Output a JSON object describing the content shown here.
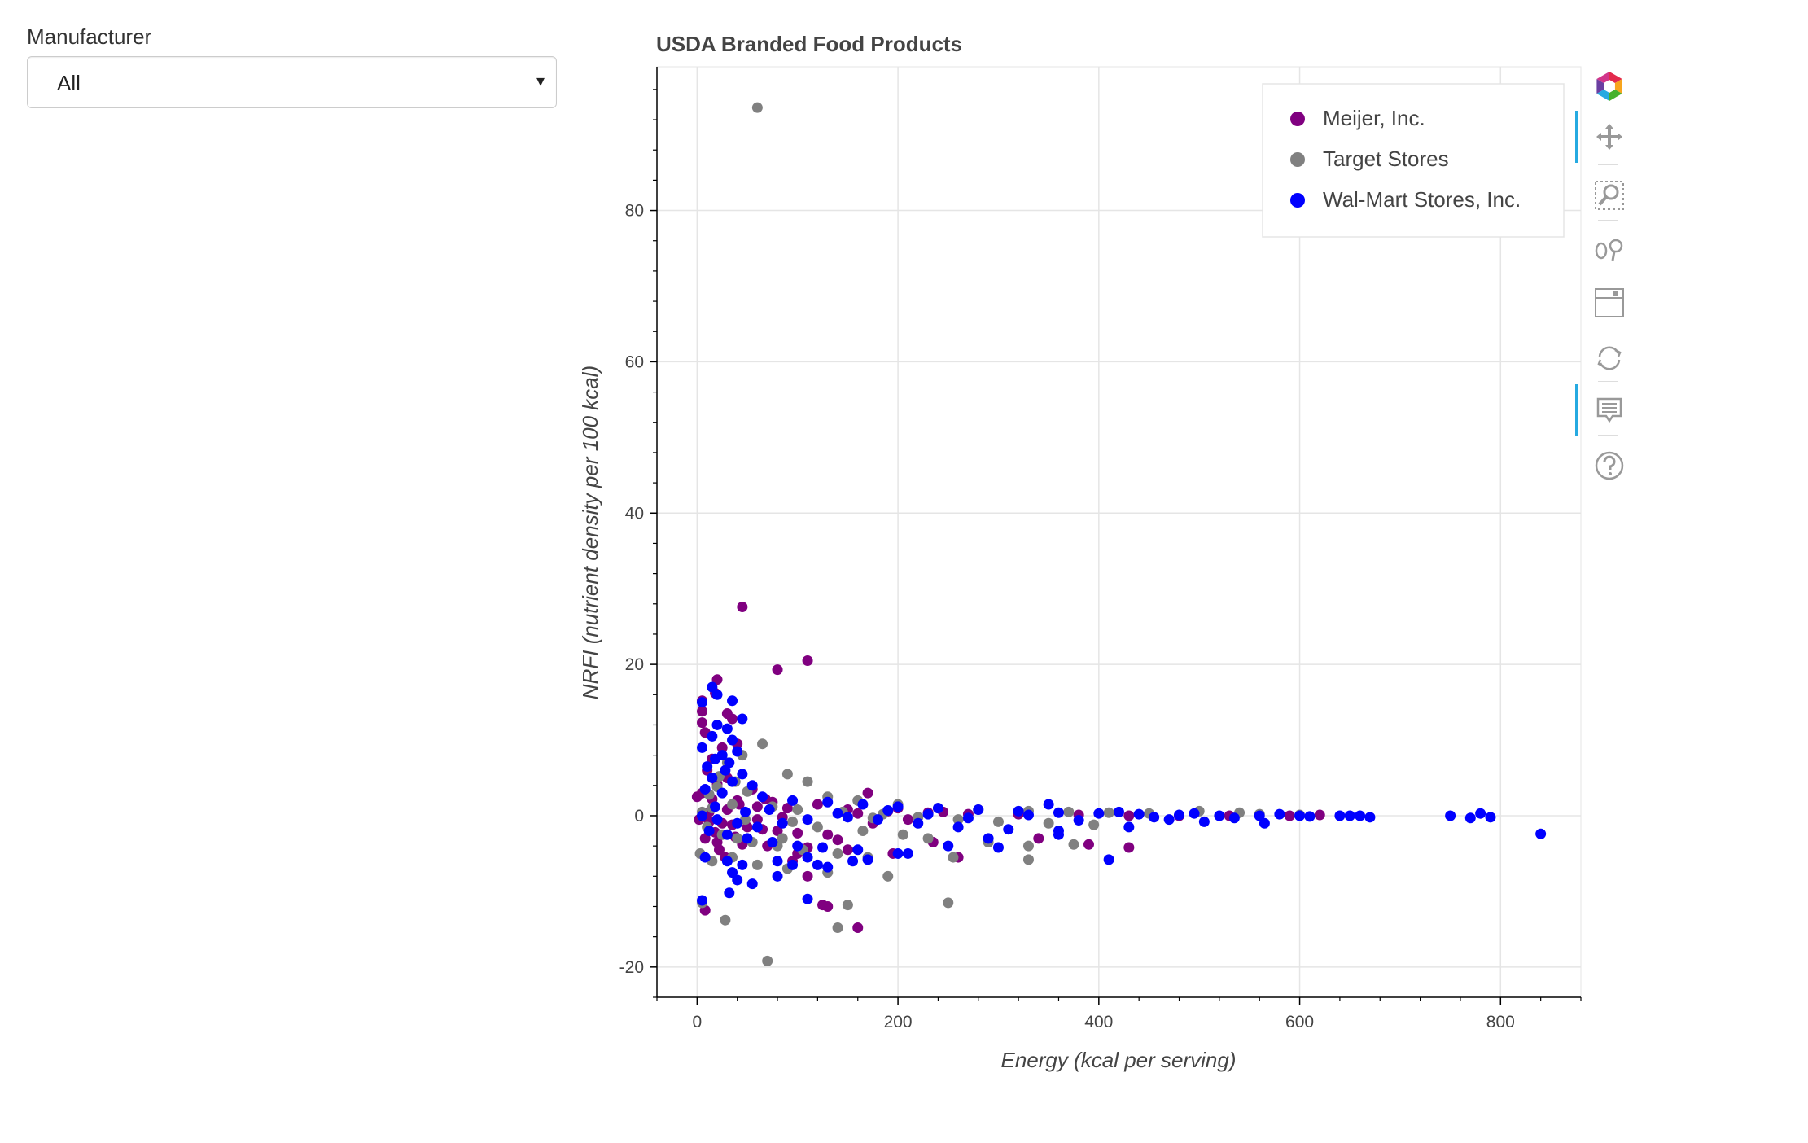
{
  "widget": {
    "label": "Manufacturer",
    "selected": "All",
    "caret": "▾"
  },
  "toolbar": {
    "tools": [
      "bokeh-logo-icon",
      "pan-icon",
      "box-zoom-icon",
      "wheel-zoom-icon",
      "save-icon",
      "reset-icon",
      "hover-icon",
      "help-icon"
    ],
    "active": [
      "pan-icon",
      "hover-icon"
    ],
    "logo_colors": [
      "#e32a4d",
      "#f8a51d",
      "#46b12d",
      "#26aae1",
      "#6a3ea1",
      "#d1358a"
    ],
    "accent": "#26aae1"
  },
  "chart_data": {
    "type": "scatter",
    "title": "USDA Branded Food Products",
    "xlabel": "Energy (kcal per serving)",
    "ylabel": "NRFI (nutrient density per 100 kcal)",
    "xlim": [
      -40,
      880
    ],
    "ylim": [
      -24,
      99
    ],
    "xticks": [
      0,
      200,
      400,
      600,
      800
    ],
    "yticks": [
      -20,
      0,
      20,
      40,
      60,
      80
    ],
    "grid": true,
    "legend_position": "top-right",
    "series": [
      {
        "name": "Meijer, Inc.",
        "color": "#800080",
        "points": [
          [
            45,
            27.6
          ],
          [
            110,
            20.5
          ],
          [
            80,
            19.3
          ],
          [
            20,
            18.0
          ],
          [
            18,
            16.2
          ],
          [
            5,
            15.2
          ],
          [
            5,
            13.8
          ],
          [
            30,
            13.5
          ],
          [
            35,
            12.8
          ],
          [
            5,
            12.3
          ],
          [
            8,
            11.0
          ],
          [
            40,
            9.5
          ],
          [
            25,
            9.0
          ],
          [
            15,
            7.5
          ],
          [
            10,
            6.0
          ],
          [
            30,
            5.0
          ],
          [
            20,
            4.2
          ],
          [
            55,
            3.5
          ],
          [
            5,
            3.0
          ],
          [
            170,
            3.0
          ],
          [
            0,
            2.5
          ],
          [
            15,
            2.2
          ],
          [
            40,
            2.0
          ],
          [
            75,
            1.8
          ],
          [
            120,
            1.5
          ],
          [
            60,
            1.2
          ],
          [
            90,
            1.0
          ],
          [
            150,
            0.8
          ],
          [
            190,
            0.6
          ],
          [
            230,
            0.4
          ],
          [
            270,
            0.2
          ],
          [
            320,
            0.2
          ],
          [
            380,
            0.1
          ],
          [
            430,
            0.0
          ],
          [
            480,
            0.0
          ],
          [
            530,
            0.0
          ],
          [
            590,
            0.0
          ],
          [
            620,
            0.1
          ],
          [
            2,
            -0.5
          ],
          [
            12,
            -0.8
          ],
          [
            25,
            -1.0
          ],
          [
            35,
            -1.2
          ],
          [
            50,
            -1.5
          ],
          [
            65,
            -1.8
          ],
          [
            80,
            -2.0
          ],
          [
            100,
            -2.3
          ],
          [
            130,
            -2.5
          ],
          [
            8,
            -3.0
          ],
          [
            20,
            -3.5
          ],
          [
            45,
            -3.8
          ],
          [
            70,
            -4.0
          ],
          [
            110,
            -4.2
          ],
          [
            150,
            -4.5
          ],
          [
            195,
            -5.0
          ],
          [
            235,
            -3.5
          ],
          [
            340,
            -3.0
          ],
          [
            390,
            -3.8
          ],
          [
            430,
            -4.2
          ],
          [
            260,
            -5.5
          ],
          [
            22,
            -4.5
          ],
          [
            28,
            -5.5
          ],
          [
            95,
            -6.0
          ],
          [
            110,
            -8.0
          ],
          [
            125,
            -11.8
          ],
          [
            130,
            -12.0
          ],
          [
            160,
            -14.8
          ],
          [
            8,
            -12.5
          ],
          [
            100,
            -5.0
          ],
          [
            140,
            -3.2
          ],
          [
            175,
            -1.0
          ],
          [
            210,
            -0.5
          ],
          [
            60,
            -0.5
          ],
          [
            85,
            -0.2
          ],
          [
            160,
            0.3
          ],
          [
            200,
            1.0
          ],
          [
            245,
            0.5
          ],
          [
            12,
            0.5
          ],
          [
            30,
            0.8
          ],
          [
            42,
            1.5
          ],
          [
            68,
            2.2
          ],
          [
            18,
            -2.2
          ],
          [
            38,
            -2.8
          ]
        ]
      },
      {
        "name": "Target Stores",
        "color": "#808080",
        "points": [
          [
            60,
            93.6
          ],
          [
            65,
            9.5
          ],
          [
            45,
            8.0
          ],
          [
            30,
            7.0
          ],
          [
            90,
            5.5
          ],
          [
            110,
            4.5
          ],
          [
            20,
            3.8
          ],
          [
            50,
            3.2
          ],
          [
            130,
            2.5
          ],
          [
            160,
            2.0
          ],
          [
            200,
            1.5
          ],
          [
            240,
            1.0
          ],
          [
            280,
            0.8
          ],
          [
            330,
            0.6
          ],
          [
            370,
            0.5
          ],
          [
            410,
            0.4
          ],
          [
            450,
            0.3
          ],
          [
            500,
            0.6
          ],
          [
            540,
            0.4
          ],
          [
            560,
            0.2
          ],
          [
            600,
            0.1
          ],
          [
            5,
            0.5
          ],
          [
            15,
            1.0
          ],
          [
            35,
            1.5
          ],
          [
            75,
            1.2
          ],
          [
            100,
            0.8
          ],
          [
            145,
            0.5
          ],
          [
            185,
            0.2
          ],
          [
            220,
            -0.2
          ],
          [
            260,
            -0.5
          ],
          [
            300,
            -0.8
          ],
          [
            350,
            -1.0
          ],
          [
            395,
            -1.2
          ],
          [
            10,
            -1.5
          ],
          [
            25,
            -2.5
          ],
          [
            40,
            -3.0
          ],
          [
            55,
            -3.5
          ],
          [
            80,
            -4.0
          ],
          [
            105,
            -4.5
          ],
          [
            140,
            -5.0
          ],
          [
            170,
            -5.5
          ],
          [
            230,
            -3.0
          ],
          [
            290,
            -3.5
          ],
          [
            330,
            -4.0
          ],
          [
            3,
            -5.0
          ],
          [
            15,
            -6.0
          ],
          [
            35,
            -5.5
          ],
          [
            60,
            -6.5
          ],
          [
            90,
            -7.0
          ],
          [
            130,
            -7.5
          ],
          [
            190,
            -8.0
          ],
          [
            255,
            -5.5
          ],
          [
            330,
            -5.8
          ],
          [
            375,
            -3.8
          ],
          [
            5,
            -11.5
          ],
          [
            28,
            -13.8
          ],
          [
            140,
            -14.8
          ],
          [
            150,
            -11.8
          ],
          [
            250,
            -11.5
          ],
          [
            70,
            -19.2
          ],
          [
            85,
            -3.0
          ],
          [
            120,
            -1.5
          ],
          [
            165,
            -2.0
          ],
          [
            205,
            -2.5
          ],
          [
            48,
            -0.5
          ],
          [
            95,
            -0.8
          ],
          [
            175,
            -0.3
          ],
          [
            12,
            2.8
          ],
          [
            22,
            5.2
          ],
          [
            38,
            4.5
          ]
        ]
      },
      {
        "name": "Wal-Mart Stores, Inc.",
        "color": "#0000ff",
        "points": [
          [
            15,
            17.0
          ],
          [
            20,
            16.0
          ],
          [
            5,
            15.0
          ],
          [
            35,
            15.2
          ],
          [
            45,
            12.8
          ],
          [
            20,
            12.0
          ],
          [
            30,
            11.5
          ],
          [
            15,
            10.5
          ],
          [
            35,
            10.0
          ],
          [
            5,
            9.0
          ],
          [
            40,
            8.5
          ],
          [
            25,
            8.0
          ],
          [
            18,
            7.5
          ],
          [
            32,
            7.0
          ],
          [
            10,
            6.5
          ],
          [
            28,
            6.0
          ],
          [
            45,
            5.5
          ],
          [
            15,
            5.0
          ],
          [
            35,
            4.5
          ],
          [
            55,
            4.0
          ],
          [
            8,
            3.5
          ],
          [
            25,
            3.0
          ],
          [
            65,
            2.5
          ],
          [
            95,
            2.0
          ],
          [
            130,
            1.8
          ],
          [
            165,
            1.5
          ],
          [
            200,
            1.2
          ],
          [
            240,
            1.0
          ],
          [
            280,
            0.8
          ],
          [
            320,
            0.6
          ],
          [
            350,
            1.5
          ],
          [
            360,
            0.4
          ],
          [
            400,
            0.3
          ],
          [
            440,
            0.2
          ],
          [
            480,
            0.1
          ],
          [
            520,
            0.0
          ],
          [
            560,
            0.0
          ],
          [
            600,
            0.0
          ],
          [
            640,
            0.0
          ],
          [
            670,
            -0.2
          ],
          [
            750,
            0.0
          ],
          [
            770,
            -0.3
          ],
          [
            780,
            0.3
          ],
          [
            790,
            -0.2
          ],
          [
            840,
            -2.4
          ],
          [
            5,
            0.0
          ],
          [
            20,
            -0.5
          ],
          [
            40,
            -1.0
          ],
          [
            60,
            -1.5
          ],
          [
            85,
            -1.0
          ],
          [
            110,
            -0.5
          ],
          [
            150,
            -0.2
          ],
          [
            180,
            -0.5
          ],
          [
            220,
            -1.0
          ],
          [
            260,
            -1.5
          ],
          [
            310,
            -1.8
          ],
          [
            360,
            -2.0
          ],
          [
            12,
            -2.0
          ],
          [
            30,
            -2.5
          ],
          [
            50,
            -3.0
          ],
          [
            75,
            -3.5
          ],
          [
            100,
            -4.0
          ],
          [
            125,
            -4.2
          ],
          [
            160,
            -4.5
          ],
          [
            200,
            -5.0
          ],
          [
            250,
            -4.0
          ],
          [
            290,
            -3.0
          ],
          [
            360,
            -2.5
          ],
          [
            8,
            -5.5
          ],
          [
            30,
            -6.0
          ],
          [
            45,
            -6.5
          ],
          [
            80,
            -6.0
          ],
          [
            95,
            -6.5
          ],
          [
            110,
            -5.5
          ],
          [
            130,
            -6.8
          ],
          [
            155,
            -6.0
          ],
          [
            170,
            -5.8
          ],
          [
            210,
            -5.0
          ],
          [
            300,
            -4.2
          ],
          [
            410,
            -5.8
          ],
          [
            35,
            -7.5
          ],
          [
            40,
            -8.5
          ],
          [
            55,
            -9.0
          ],
          [
            80,
            -8.0
          ],
          [
            120,
            -6.5
          ],
          [
            32,
            -10.2
          ],
          [
            110,
            -11.0
          ],
          [
            5,
            -11.2
          ],
          [
            430,
            -1.5
          ],
          [
            470,
            -0.5
          ],
          [
            505,
            -0.8
          ],
          [
            565,
            -1.0
          ],
          [
            18,
            1.2
          ],
          [
            48,
            0.5
          ],
          [
            72,
            0.8
          ],
          [
            140,
            0.3
          ],
          [
            190,
            0.7
          ],
          [
            230,
            0.2
          ],
          [
            270,
            -0.3
          ],
          [
            330,
            0.1
          ],
          [
            380,
            -0.6
          ],
          [
            420,
            0.5
          ],
          [
            455,
            -0.2
          ],
          [
            495,
            0.3
          ],
          [
            535,
            -0.3
          ],
          [
            580,
            0.2
          ],
          [
            610,
            -0.1
          ],
          [
            650,
            0.0
          ],
          [
            660,
            0.0
          ]
        ]
      }
    ]
  }
}
